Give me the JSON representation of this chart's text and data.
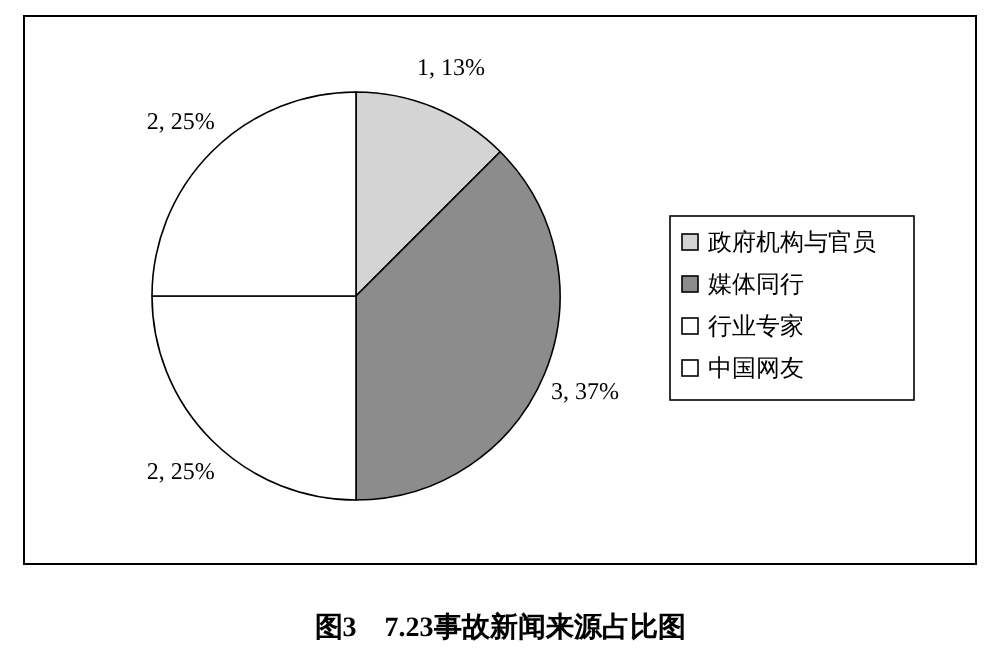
{
  "chart_data": {
    "type": "pie",
    "title": "图3　7.23事故新闻来源占比图",
    "categories": [
      "政府机构与官员",
      "媒体同行",
      "行业专家",
      "中国网友"
    ],
    "values": [
      1,
      3,
      2,
      2
    ],
    "colors": [
      "#d4d4d4",
      "#8c8c8c",
      "#ffffff",
      "#ffffff"
    ],
    "value_labels": [
      "1, 13%",
      "3, 37%",
      "2, 25%",
      "2, 25%"
    ],
    "legend": "right"
  }
}
